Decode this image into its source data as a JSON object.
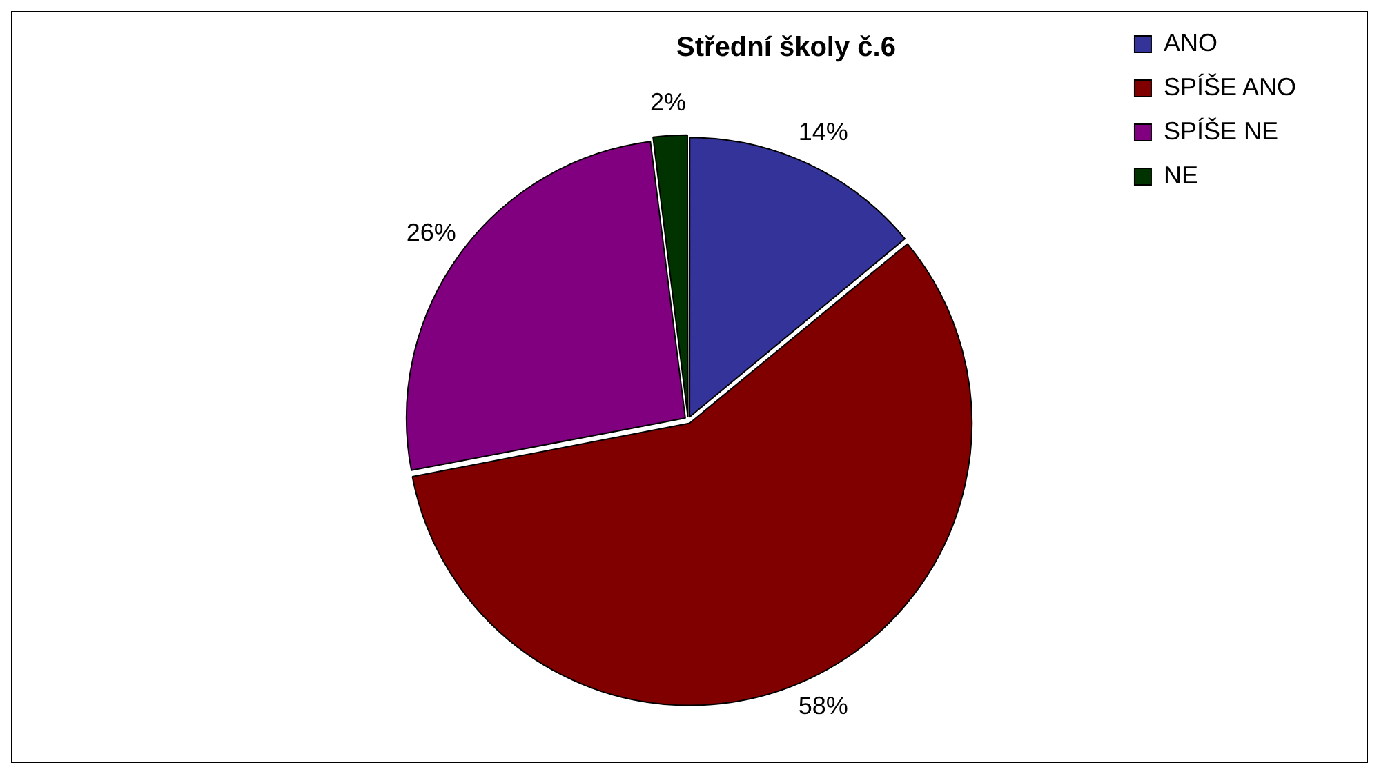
{
  "chart_data": {
    "type": "pie",
    "title": "Střední školy č.6",
    "categories": [
      "ANO",
      "SPÍŠE ANO",
      "SPÍŠE NE",
      "NE"
    ],
    "values": [
      14,
      58,
      26,
      2
    ],
    "colors": [
      "#333399",
      "#800000",
      "#800080",
      "#003300"
    ],
    "value_labels": [
      "14%",
      "58%",
      "26%",
      "2%"
    ],
    "legend": "top right"
  }
}
